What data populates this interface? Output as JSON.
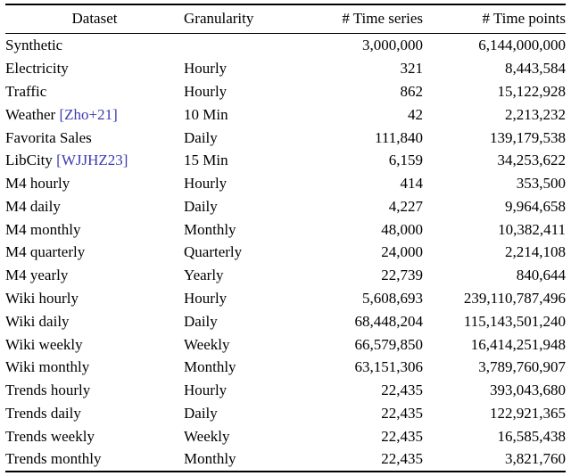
{
  "colors": {
    "citation_link": "#3b3bb0",
    "rule": "#000000",
    "text": "#000000",
    "background": "#ffffff"
  },
  "table": {
    "columns": [
      "Dataset",
      "Granularity",
      "# Time series",
      "# Time points"
    ],
    "rows": [
      {
        "name": "Synthetic",
        "cite": "",
        "granularity": "",
        "series": "3,000,000",
        "points": "6,144,000,000"
      },
      {
        "name": "Electricity",
        "cite": "",
        "granularity": "Hourly",
        "series": "321",
        "points": "8,443,584"
      },
      {
        "name": "Traffic",
        "cite": "",
        "granularity": "Hourly",
        "series": "862",
        "points": "15,122,928"
      },
      {
        "name": "Weather",
        "cite": "[Zho+21]",
        "granularity": "10 Min",
        "series": "42",
        "points": "2,213,232"
      },
      {
        "name": "Favorita Sales",
        "cite": "",
        "granularity": "Daily",
        "series": "111,840",
        "points": "139,179,538"
      },
      {
        "name": "LibCity",
        "cite": "[WJJHZ23]",
        "granularity": "15 Min",
        "series": "6,159",
        "points": "34,253,622"
      },
      {
        "name": "M4 hourly",
        "cite": "",
        "granularity": "Hourly",
        "series": "414",
        "points": "353,500"
      },
      {
        "name": "M4 daily",
        "cite": "",
        "granularity": "Daily",
        "series": "4,227",
        "points": "9,964,658"
      },
      {
        "name": "M4 monthly",
        "cite": "",
        "granularity": "Monthly",
        "series": "48,000",
        "points": "10,382,411"
      },
      {
        "name": "M4 quarterly",
        "cite": "",
        "granularity": "Quarterly",
        "series": "24,000",
        "points": "2,214,108"
      },
      {
        "name": "M4 yearly",
        "cite": "",
        "granularity": "Yearly",
        "series": "22,739",
        "points": "840,644"
      },
      {
        "name": "Wiki hourly",
        "cite": "",
        "granularity": "Hourly",
        "series": "5,608,693",
        "points": "239,110,787,496"
      },
      {
        "name": "Wiki daily",
        "cite": "",
        "granularity": "Daily",
        "series": "68,448,204",
        "points": "115,143,501,240"
      },
      {
        "name": "Wiki weekly",
        "cite": "",
        "granularity": "Weekly",
        "series": "66,579,850",
        "points": "16,414,251,948"
      },
      {
        "name": "Wiki monthly",
        "cite": "",
        "granularity": "Monthly",
        "series": "63,151,306",
        "points": "3,789,760,907"
      },
      {
        "name": "Trends hourly",
        "cite": "",
        "granularity": "Hourly",
        "series": "22,435",
        "points": "393,043,680"
      },
      {
        "name": "Trends daily",
        "cite": "",
        "granularity": "Daily",
        "series": "22,435",
        "points": "122,921,365"
      },
      {
        "name": "Trends weekly",
        "cite": "",
        "granularity": "Weekly",
        "series": "22,435",
        "points": "16,585,438"
      },
      {
        "name": "Trends monthly",
        "cite": "",
        "granularity": "Monthly",
        "series": "22,435",
        "points": "3,821,760"
      }
    ]
  }
}
